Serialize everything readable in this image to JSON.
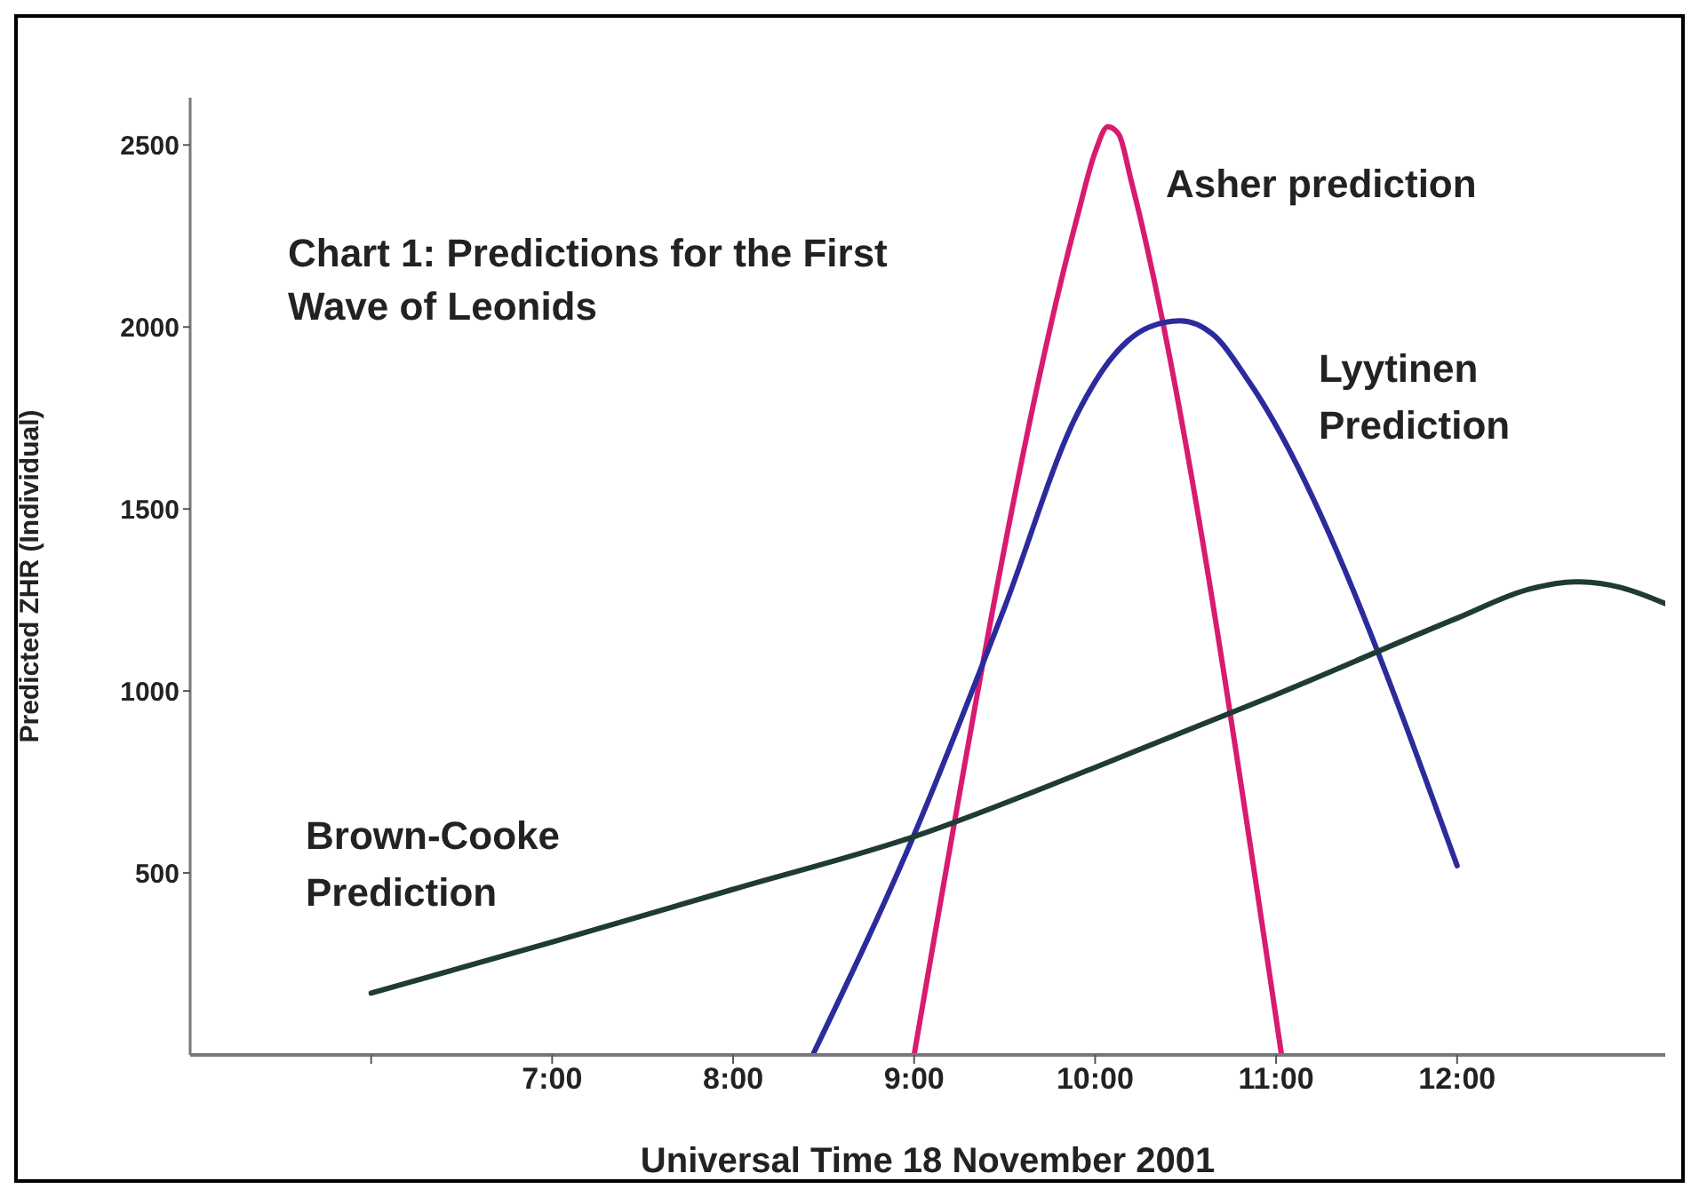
{
  "chart_data": {
    "type": "line",
    "title": "Chart 1: Predictions for the First Wave of Leonids",
    "xlabel": "Universal Time 18 November 2001",
    "ylabel": "Predicted ZHR (Individual)",
    "xlim": [
      5,
      13.15
    ],
    "xticks": [
      {
        "value": 6,
        "label": null
      },
      {
        "value": 7,
        "label": "7:00"
      },
      {
        "value": 8,
        "label": "8:00"
      },
      {
        "value": 9,
        "label": "9:00"
      },
      {
        "value": 10,
        "label": "10:00"
      },
      {
        "value": 11,
        "label": "11:00"
      },
      {
        "value": 12,
        "label": "12:00"
      }
    ],
    "ylim": [
      0,
      2630
    ],
    "yticks": [
      500,
      1000,
      1500,
      2000,
      2500
    ],
    "marker": "none",
    "line_style": "solid",
    "series": [
      {
        "name": "Asher prediction",
        "color": "#d81b70",
        "x": [
          9.0,
          9.9,
          10.0,
          10.07,
          10.13,
          10.2,
          11.03
        ],
        "values": [
          0,
          2300,
          2480,
          2550,
          2530,
          2400,
          0
        ]
      },
      {
        "name": "Lyytinen Prediction",
        "color": "#2b2b9c",
        "x": [
          8.44,
          9.0,
          9.5,
          9.9,
          10.1,
          10.3,
          10.47,
          10.65,
          10.85,
          12.0
        ],
        "values": [
          0,
          605,
          1230,
          1760,
          1920,
          2000,
          2017,
          1980,
          1850,
          520
        ]
      },
      {
        "name": "Brown-Cooke Prediction",
        "color": "#1e3b34",
        "x": [
          6.0,
          7.0,
          8.0,
          9.0,
          10.0,
          11.0,
          12.0,
          12.4,
          12.65,
          12.9,
          13.15
        ],
        "values": [
          170,
          310,
          455,
          600,
          790,
          990,
          1200,
          1280,
          1300,
          1285,
          1240
        ]
      }
    ]
  }
}
